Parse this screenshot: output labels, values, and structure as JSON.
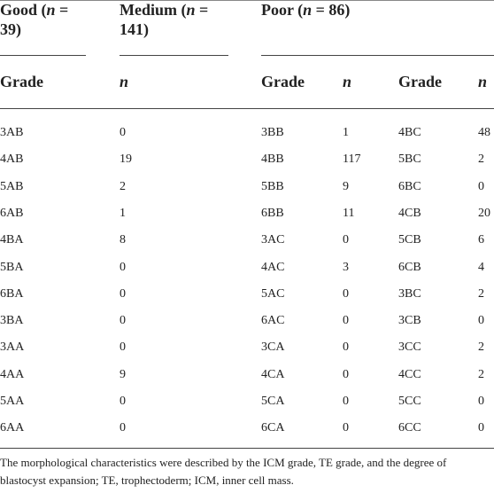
{
  "table": {
    "groups": [
      [
        "Good (",
        "n",
        " = 39)"
      ],
      [
        "Medium (",
        "n",
        " = 141)"
      ],
      [
        "Poor (",
        "n",
        " = 86)"
      ]
    ],
    "columns": [
      "Grade",
      "n",
      "Grade",
      "n",
      "Grade",
      "n"
    ],
    "rows": [
      [
        "3AB",
        0,
        "3BB",
        1,
        "4BC",
        48
      ],
      [
        "4AB",
        19,
        "4BB",
        117,
        "5BC",
        2
      ],
      [
        "5AB",
        2,
        "5BB",
        9,
        "6BC",
        0
      ],
      [
        "6AB",
        1,
        "6BB",
        11,
        "4CB",
        20
      ],
      [
        "4BA",
        8,
        "3AC",
        0,
        "5CB",
        6
      ],
      [
        "5BA",
        0,
        "4AC",
        3,
        "6CB",
        4
      ],
      [
        "6BA",
        0,
        "5AC",
        0,
        "3BC",
        2
      ],
      [
        "3BA",
        0,
        "6AC",
        0,
        "3CB",
        0
      ],
      [
        "3AA",
        0,
        "3CA",
        0,
        "3CC",
        2
      ],
      [
        "4AA",
        9,
        "4CA",
        0,
        "4CC",
        2
      ],
      [
        "5AA",
        0,
        "5CA",
        0,
        "5CC",
        0
      ],
      [
        "6AA",
        0,
        "6CA",
        0,
        "6CC",
        0
      ]
    ],
    "note": "The morphological characteristics were described by the ICM grade, TE grade, and the degree of blastocyst expansion; TE, trophectoderm; ICM, inner cell mass."
  }
}
